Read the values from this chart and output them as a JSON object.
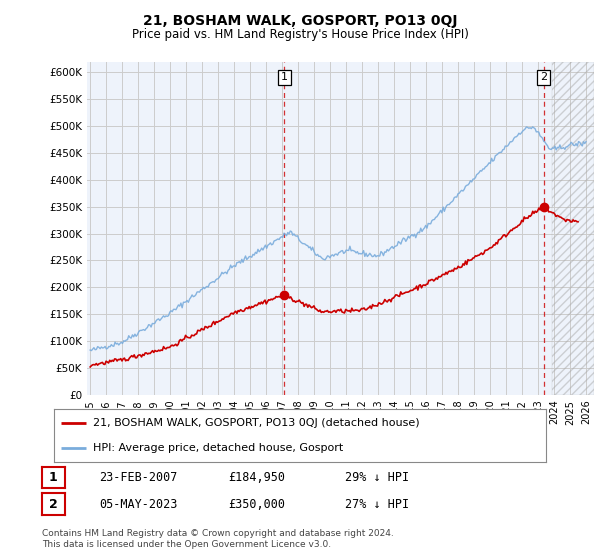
{
  "title": "21, BOSHAM WALK, GOSPORT, PO13 0QJ",
  "subtitle": "Price paid vs. HM Land Registry's House Price Index (HPI)",
  "ylabel_ticks": [
    "£0",
    "£50K",
    "£100K",
    "£150K",
    "£200K",
    "£250K",
    "£300K",
    "£350K",
    "£400K",
    "£450K",
    "£500K",
    "£550K",
    "£600K"
  ],
  "ytick_values": [
    0,
    50000,
    100000,
    150000,
    200000,
    250000,
    300000,
    350000,
    400000,
    450000,
    500000,
    550000,
    600000
  ],
  "xlim_start": 1994.8,
  "xlim_end": 2026.5,
  "ylim": [
    0,
    620000
  ],
  "purchase1_x": 2007.14,
  "purchase1_y": 184950,
  "purchase2_x": 2023.35,
  "purchase2_y": 350000,
  "vline1_x": 2007.14,
  "vline2_x": 2023.35,
  "legend_line1": "21, BOSHAM WALK, GOSPORT, PO13 0QJ (detached house)",
  "legend_line2": "HPI: Average price, detached house, Gosport",
  "table_row1": [
    "1",
    "23-FEB-2007",
    "£184,950",
    "29% ↓ HPI"
  ],
  "table_row2": [
    "2",
    "05-MAY-2023",
    "£350,000",
    "27% ↓ HPI"
  ],
  "footnote": "Contains HM Land Registry data © Crown copyright and database right 2024.\nThis data is licensed under the Open Government Licence v3.0.",
  "line_color_red": "#cc0000",
  "line_color_blue": "#7aacdc",
  "vline_color": "#cc0000",
  "grid_color": "#cccccc",
  "background_color": "#ffffff",
  "plot_bg_color": "#eef3fb"
}
